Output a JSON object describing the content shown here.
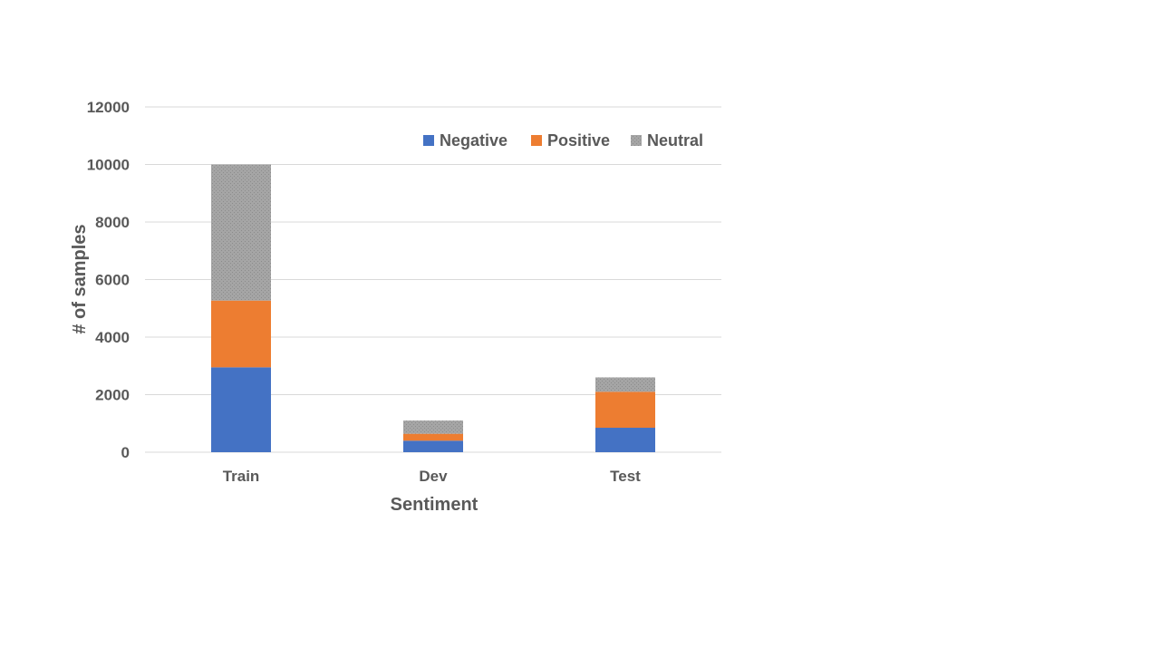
{
  "chart_data": {
    "type": "bar",
    "stacked": true,
    "title": "",
    "xlabel": "Sentiment",
    "ylabel": "# of samples",
    "categories": [
      "Train",
      "Dev",
      "Test"
    ],
    "series": [
      {
        "name": "Negative",
        "color": "#4472c4",
        "values": [
          2950,
          400,
          850
        ]
      },
      {
        "name": "Positive",
        "color": "#ed7d31",
        "values": [
          2320,
          240,
          1250
        ]
      },
      {
        "name": "Neutral",
        "color": "#a5a5a5",
        "values": [
          4730,
          460,
          500
        ]
      }
    ],
    "ylim": [
      0,
      12000
    ],
    "yticks": [
      "0",
      "2000",
      "4000",
      "6000",
      "8000",
      "10000",
      "12000"
    ],
    "grid": true,
    "legend_position": "top-right"
  }
}
